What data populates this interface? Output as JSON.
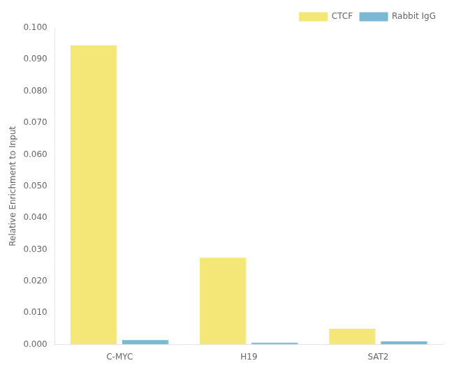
{
  "chart_data": {
    "type": "bar",
    "categories": [
      "C-MYC",
      "H19",
      "SAT2"
    ],
    "series": [
      {
        "name": "CTCF",
        "color": "#F5E678",
        "values": [
          0.0945,
          0.0275,
          0.005
        ]
      },
      {
        "name": "Rabbit IgG",
        "color": "#7BB8D4",
        "values": [
          0.0015,
          0.0007,
          0.001
        ]
      }
    ],
    "ylabel": "Relative Enrichment to Input",
    "ylim": [
      0,
      0.1
    ],
    "yticks": [
      {
        "value": 0,
        "label": "0.000"
      },
      {
        "value": 0.01,
        "label": "0.010"
      },
      {
        "value": 0.02,
        "label": "0.020"
      },
      {
        "value": 0.03,
        "label": "0.030"
      },
      {
        "value": 0.04,
        "label": "0.040"
      },
      {
        "value": 0.05,
        "label": "0.050"
      },
      {
        "value": 0.06,
        "label": "0.060"
      },
      {
        "value": 0.07,
        "label": "0.070"
      },
      {
        "value": 0.08,
        "label": "0.080"
      },
      {
        "value": 0.09,
        "label": "0.090"
      },
      {
        "value": 0.1,
        "label": "0.100"
      }
    ],
    "grid": false,
    "legend": "upper right"
  }
}
